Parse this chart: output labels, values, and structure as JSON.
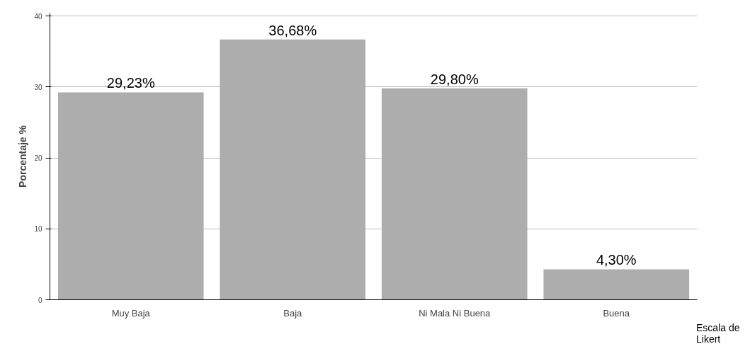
{
  "chart_data": {
    "type": "bar",
    "ylabel": "Porcentaje %",
    "xlabel": "Escala de\nLikert",
    "categories": [
      "Muy Baja",
      "Baja",
      "Ni Mala Ni Buena",
      "Buena"
    ],
    "values": [
      29.23,
      36.68,
      29.8,
      4.3
    ],
    "value_labels": [
      "29,23%",
      "36,68%",
      "29,80%",
      "4,30%"
    ],
    "color": "#adadad",
    "ylim": [
      0,
      40.4
    ],
    "yticks": [
      0,
      10,
      20,
      30,
      40
    ],
    "grid": "y"
  }
}
